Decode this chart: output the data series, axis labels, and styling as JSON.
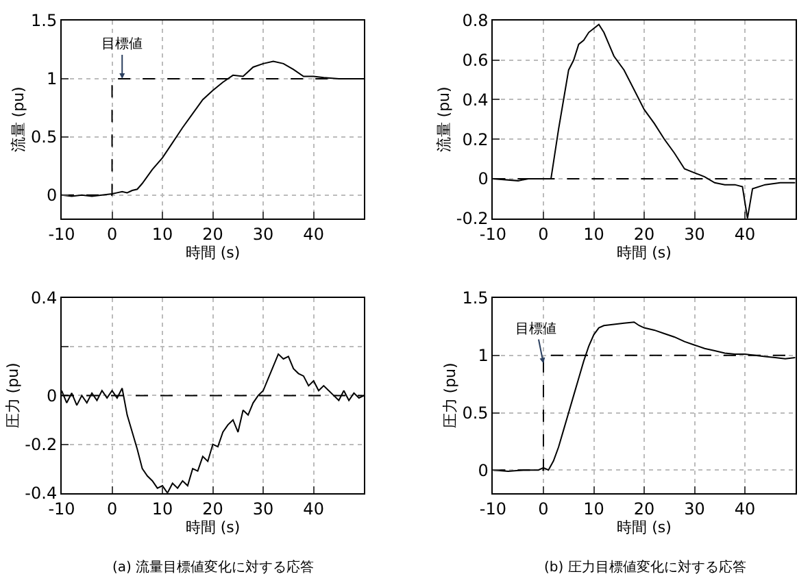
{
  "chart_data": [
    {
      "type": "line",
      "xlabel": "時間 (s)",
      "ylabel": "流量 (pu)",
      "xlim": [
        -10,
        50
      ],
      "xticks": [
        -10,
        0,
        10,
        20,
        30,
        40
      ],
      "ylim": [
        -0.2,
        1.5
      ],
      "yticks": [
        0,
        0.5,
        1,
        1.5
      ],
      "grid": true,
      "series": [
        {
          "color": "#000000",
          "x": [
            -10,
            -8,
            -6,
            -4,
            -2,
            0,
            1,
            2,
            3,
            4,
            5,
            6,
            8,
            10,
            12,
            14,
            16,
            18,
            20,
            22,
            24,
            26,
            28,
            30,
            32,
            34,
            36,
            38,
            40,
            42,
            45,
            50
          ],
          "values": [
            0,
            -0.01,
            0,
            -0.01,
            0,
            0.01,
            0.02,
            0.03,
            0.02,
            0.04,
            0.05,
            0.1,
            0.22,
            0.32,
            0.45,
            0.58,
            0.7,
            0.82,
            0.9,
            0.97,
            1.03,
            1.02,
            1.1,
            1.13,
            1.15,
            1.13,
            1.08,
            1.02,
            1.02,
            1.01,
            1.0,
            1.0
          ]
        },
        {
          "type": "step",
          "color": "#000000",
          "line_style": "dashed",
          "x": [
            -10,
            0,
            50
          ],
          "values": [
            0,
            1,
            1
          ]
        }
      ],
      "annotations": [
        {
          "text": "目標値",
          "x": 2,
          "y": 1
        }
      ]
    },
    {
      "type": "line",
      "xlabel": "時間 (s)",
      "ylabel": "流量 (pu)",
      "xlim": [
        -10,
        50
      ],
      "xticks": [
        -10,
        0,
        10,
        20,
        30,
        40
      ],
      "ylim": [
        -0.2,
        0.8
      ],
      "yticks": [
        -0.2,
        0,
        0.2,
        0.4,
        0.6,
        0.8
      ],
      "grid": true,
      "series": [
        {
          "color": "#000000",
          "x": [
            -10,
            -5,
            -3,
            0,
            1.5,
            3,
            4,
            5,
            6,
            7,
            8,
            9,
            10,
            11,
            12,
            13,
            14,
            16,
            18,
            20,
            22,
            24,
            26,
            28,
            30,
            32,
            34,
            36,
            38,
            39.5,
            40.5,
            41.5,
            44,
            47,
            50
          ],
          "values": [
            0,
            -0.01,
            0,
            0,
            0,
            0.25,
            0.4,
            0.55,
            0.6,
            0.68,
            0.7,
            0.74,
            0.76,
            0.78,
            0.74,
            0.68,
            0.62,
            0.55,
            0.45,
            0.35,
            0.28,
            0.2,
            0.13,
            0.05,
            0.03,
            0.01,
            -0.02,
            -0.03,
            -0.03,
            -0.04,
            -0.2,
            -0.05,
            -0.03,
            -0.02,
            -0.02
          ]
        }
      ],
      "ref_lines": [
        {
          "axis": "y",
          "value": 0,
          "line_style": "dashed",
          "color": "#000000"
        }
      ]
    },
    {
      "type": "line",
      "xlabel": "時間 (s)",
      "ylabel": "圧力 (pu)",
      "xlim": [
        -10,
        50
      ],
      "xticks": [
        -10,
        0,
        10,
        20,
        30,
        40
      ],
      "ylim": [
        -0.4,
        0.4
      ],
      "yticks": [
        -0.4,
        -0.2,
        0,
        {
          "value": 0.2,
          "label": null
        },
        0.4
      ],
      "grid": true,
      "series": [
        {
          "color": "#000000",
          "x": [
            -10,
            -9,
            -8,
            -7,
            -6,
            -5,
            -4,
            -3,
            -2,
            -1,
            0,
            1,
            2,
            3,
            4,
            5,
            6,
            7,
            8,
            9,
            10,
            11,
            12,
            13,
            14,
            15,
            16,
            17,
            18,
            19,
            20,
            21,
            22,
            23,
            24,
            25,
            26,
            27,
            28,
            29,
            30,
            31,
            32,
            33,
            34,
            35,
            36,
            37,
            38,
            39,
            40,
            41,
            42,
            43,
            44,
            45,
            46,
            47,
            48,
            49,
            50
          ],
          "values": [
            0.02,
            -0.03,
            0.01,
            -0.04,
            0,
            -0.03,
            0.01,
            -0.02,
            0.02,
            -0.01,
            0.02,
            -0.01,
            0.03,
            -0.08,
            -0.15,
            -0.22,
            -0.3,
            -0.33,
            -0.35,
            -0.38,
            -0.37,
            -0.4,
            -0.36,
            -0.38,
            -0.35,
            -0.37,
            -0.3,
            -0.31,
            -0.25,
            -0.27,
            -0.2,
            -0.21,
            -0.15,
            -0.12,
            -0.1,
            -0.15,
            -0.06,
            -0.08,
            -0.03,
            0,
            0.02,
            0.07,
            0.12,
            0.17,
            0.15,
            0.16,
            0.11,
            0.09,
            0.08,
            0.04,
            0.06,
            0.02,
            0.04,
            0.02,
            0,
            -0.02,
            0.02,
            -0.02,
            0.01,
            -0.01,
            0
          ]
        }
      ],
      "ref_lines": [
        {
          "axis": "y",
          "value": 0,
          "line_style": "dashed",
          "color": "#000000"
        }
      ],
      "annotations": [
        "(a) 流量目標値変化に対する応答"
      ]
    },
    {
      "type": "line",
      "xlabel": "時間 (s)",
      "ylabel": "圧力 (pu)",
      "xlim": [
        -10,
        50
      ],
      "xticks": [
        -10,
        0,
        10,
        20,
        30,
        40
      ],
      "ylim": [
        -0.2,
        1.5
      ],
      "yticks": [
        0,
        0.5,
        1,
        1.5
      ],
      "grid": true,
      "series": [
        {
          "color": "#000000",
          "x": [
            -10,
            -7,
            -4,
            -1,
            0,
            1,
            2,
            3,
            4,
            5,
            6,
            7,
            8,
            9,
            10,
            11,
            12,
            14,
            16,
            18,
            19,
            20,
            22,
            24,
            26,
            28,
            30,
            32,
            34,
            36,
            38,
            40,
            42,
            44,
            46,
            48,
            50
          ],
          "values": [
            0,
            -0.01,
            0,
            0,
            0.02,
            0,
            0.08,
            0.2,
            0.35,
            0.5,
            0.65,
            0.8,
            0.95,
            1.08,
            1.18,
            1.24,
            1.26,
            1.27,
            1.28,
            1.29,
            1.26,
            1.24,
            1.22,
            1.19,
            1.16,
            1.12,
            1.09,
            1.06,
            1.04,
            1.02,
            1.01,
            1.01,
            1.0,
            0.99,
            0.98,
            0.97,
            0.98
          ]
        },
        {
          "type": "step",
          "color": "#000000",
          "line_style": "dashed",
          "x": [
            -10,
            0,
            50
          ],
          "values": [
            0,
            1,
            1
          ]
        }
      ],
      "annotations": [
        {
          "text": "目標値",
          "x": 0,
          "y": 0.93
        },
        "(b) 圧力目標値変化に対する応答"
      ]
    }
  ]
}
